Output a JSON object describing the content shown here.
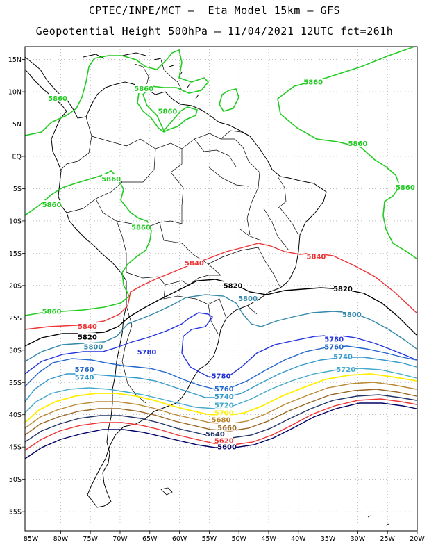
{
  "header": {
    "line1": "CPTEC/INPE/MCT –  Eta Model 15km – GFS",
    "line2": "Geopotential Height 500hPa – 11/04/2021 12UTC fct=261h"
  },
  "axes": {
    "lon_ticks": [
      "85W",
      "80W",
      "75W",
      "70W",
      "65W",
      "60W",
      "55W",
      "50W",
      "45W",
      "40W",
      "35W",
      "30W",
      "25W",
      "20W"
    ],
    "lat_ticks": [
      "15N",
      "10N",
      "5N",
      "EQ",
      "5S",
      "10S",
      "15S",
      "20S",
      "25S",
      "30S",
      "35S",
      "40S",
      "45S",
      "50S",
      "55S"
    ],
    "lon_range": [
      -86,
      -20
    ],
    "lat_range": [
      17,
      -58
    ]
  },
  "colors": {
    "c5860": "#22cc22",
    "c5840": "#ee3333",
    "c5820": "#000000",
    "c5800": "#3388aa",
    "c5780": "#2233dd",
    "c5760": "#2266cc",
    "c5740": "#3399cc",
    "c5720": "#44aacc",
    "c5700": "#ffee00",
    "c5680": "#bb8833",
    "c5660": "#996622",
    "c5640": "#223366",
    "c5620": "#ee3333",
    "c5600": "#000066"
  },
  "labels": [
    {
      "text": "5860",
      "lon": -80.5,
      "lat": 9.0,
      "color": "c5860"
    },
    {
      "text": "5860",
      "lon": -66.0,
      "lat": 10.5,
      "color": "c5860"
    },
    {
      "text": "5860",
      "lon": -62.0,
      "lat": 7.0,
      "color": "c5860"
    },
    {
      "text": "5860",
      "lon": -37.5,
      "lat": 11.5,
      "color": "c5860"
    },
    {
      "text": "5860",
      "lon": -30.0,
      "lat": 2.0,
      "color": "c5860"
    },
    {
      "text": "5860",
      "lon": -22.0,
      "lat": -4.8,
      "color": "c5860"
    },
    {
      "text": "5860",
      "lon": -71.5,
      "lat": -3.5,
      "color": "c5860"
    },
    {
      "text": "5860",
      "lon": -81.5,
      "lat": -7.5,
      "color": "c5860"
    },
    {
      "text": "5860",
      "lon": -66.5,
      "lat": -11.0,
      "color": "c5860"
    },
    {
      "text": "5860",
      "lon": -81.5,
      "lat": -24.0,
      "color": "c5860"
    },
    {
      "text": "5840",
      "lon": -57.5,
      "lat": -16.5,
      "color": "c5840"
    },
    {
      "text": "5840",
      "lon": -37.0,
      "lat": -15.5,
      "color": "c5840"
    },
    {
      "text": "5840",
      "lon": -75.5,
      "lat": -26.3,
      "color": "c5840"
    },
    {
      "text": "5820",
      "lon": -51.0,
      "lat": -20.0,
      "color": "c5820"
    },
    {
      "text": "5820",
      "lon": -32.5,
      "lat": -20.5,
      "color": "c5820"
    },
    {
      "text": "5820",
      "lon": -75.5,
      "lat": -28.0,
      "color": "c5820"
    },
    {
      "text": "5800",
      "lon": -48.5,
      "lat": -22.0,
      "color": "c5800"
    },
    {
      "text": "5800",
      "lon": -31.0,
      "lat": -24.5,
      "color": "c5800"
    },
    {
      "text": "5800",
      "lon": -74.5,
      "lat": -29.5,
      "color": "c5800"
    },
    {
      "text": "5780",
      "lon": -65.5,
      "lat": -30.3,
      "color": "c5780"
    },
    {
      "text": "5780",
      "lon": -34.0,
      "lat": -28.3,
      "color": "c5780"
    },
    {
      "text": "5780",
      "lon": -53.0,
      "lat": -34.0,
      "color": "c5780"
    },
    {
      "text": "5760",
      "lon": -34.0,
      "lat": -29.5,
      "color": "c5760"
    },
    {
      "text": "5760",
      "lon": -76.0,
      "lat": -33.0,
      "color": "c5760"
    },
    {
      "text": "5760",
      "lon": -52.5,
      "lat": -36.0,
      "color": "c5760"
    },
    {
      "text": "5740",
      "lon": -32.5,
      "lat": -31.0,
      "color": "c5740"
    },
    {
      "text": "5740",
      "lon": -76.0,
      "lat": -34.2,
      "color": "c5740"
    },
    {
      "text": "5740",
      "lon": -52.5,
      "lat": -37.2,
      "color": "c5740"
    },
    {
      "text": "5720",
      "lon": -32.0,
      "lat": -33.0,
      "color": "c5720"
    },
    {
      "text": "5720",
      "lon": -52.5,
      "lat": -38.5,
      "color": "c5720"
    },
    {
      "text": "5700",
      "lon": -52.5,
      "lat": -39.7,
      "color": "c5700"
    },
    {
      "text": "5680",
      "lon": -53.0,
      "lat": -40.8,
      "color": "c5680"
    },
    {
      "text": "5660",
      "lon": -52.0,
      "lat": -42.0,
      "color": "c5660"
    },
    {
      "text": "5640",
      "lon": -54.0,
      "lat": -43.0,
      "color": "c5640"
    },
    {
      "text": "5620",
      "lon": -52.5,
      "lat": -44.0,
      "color": "c5620"
    },
    {
      "text": "5600",
      "lon": -52.0,
      "lat": -45.0,
      "color": "c5600"
    }
  ]
}
